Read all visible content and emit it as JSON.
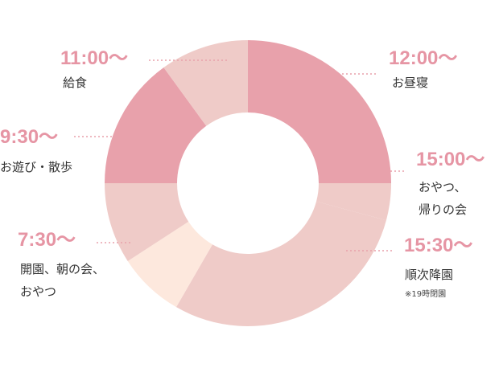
{
  "chart_data": {
    "type": "donut",
    "categories": [
      "12:00〜",
      "15:00〜",
      "15:30〜",
      null,
      "7:30〜",
      "9:30〜",
      "11:00〜"
    ],
    "descriptions": [
      [
        "お昼寝"
      ],
      [
        "おやつ、",
        "帰りの会"
      ],
      [
        "順次降園"
      ],
      null,
      [
        "開園、朝の会、",
        "おやつ"
      ],
      [
        "お遊び・散歩"
      ],
      [
        "給食"
      ]
    ],
    "note": "※19時閉園",
    "values": [
      90,
      15,
      105,
      27,
      33,
      54,
      36
    ],
    "colors": [
      "#e8a1ab",
      "#efcbc8",
      "#efcbc8",
      "#fde8dd",
      "#efcbc8",
      "#e8a1ab",
      "#efcbc8"
    ]
  }
}
